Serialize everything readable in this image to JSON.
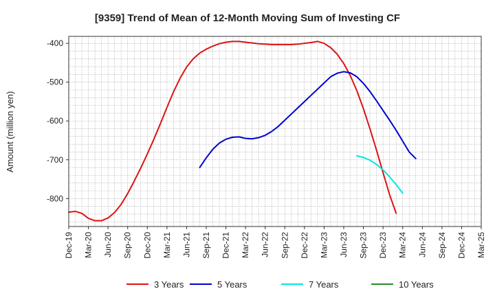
{
  "chart_data": {
    "type": "line",
    "title": "[9359]  Trend of Mean of 12-Month Moving Sum of Investing CF",
    "xlabel": "",
    "ylabel": "Amount (million yen)",
    "ylim": [
      -872,
      -382
    ],
    "yticks": [
      -400,
      -500,
      -600,
      -700,
      -800
    ],
    "ytick_labels": [
      "-400",
      "-500",
      "-600",
      "-700",
      "-800"
    ],
    "x_start": "2019-12",
    "x_end": "2025-03",
    "xticks": [
      "Dec-19",
      "Mar-20",
      "Jun-20",
      "Sep-20",
      "Dec-20",
      "Mar-21",
      "Jun-21",
      "Sep-21",
      "Dec-21",
      "Mar-22",
      "Jun-22",
      "Sep-22",
      "Dec-22",
      "Mar-23",
      "Jun-23",
      "Sep-23",
      "Dec-23",
      "Mar-24",
      "Jun-24",
      "Sep-24",
      "Dec-24",
      "Mar-25"
    ],
    "grid": true,
    "legend_position": "bottom",
    "series": [
      {
        "name": "3 Years",
        "color": "#dd1111",
        "start": "2019-12",
        "values": [
          -835,
          -833,
          -838,
          -851,
          -857,
          -857,
          -850,
          -836,
          -815,
          -787,
          -755,
          -721,
          -685,
          -647,
          -607,
          -565,
          -525,
          -490,
          -461,
          -440,
          -425,
          -415,
          -407,
          -401,
          -397,
          -395,
          -395,
          -397,
          -399,
          -401,
          -402,
          -403,
          -403,
          -403,
          -403,
          -402,
          -400,
          -398,
          -395,
          -400,
          -411,
          -428,
          -452,
          -483,
          -522,
          -568,
          -620,
          -675,
          -733,
          -790,
          -838
        ]
      },
      {
        "name": "5 Years",
        "color": "#0000cc",
        "start": "2021-08",
        "values": [
          -720,
          -695,
          -673,
          -657,
          -647,
          -642,
          -641,
          -645,
          -646,
          -643,
          -637,
          -627,
          -614,
          -598,
          -582,
          -566,
          -550,
          -534,
          -518,
          -502,
          -486,
          -477,
          -473,
          -476,
          -486,
          -503,
          -524,
          -548,
          -573,
          -598,
          -624,
          -652,
          -680,
          -697
        ]
      },
      {
        "name": "7 Years",
        "color": "#00e5e5",
        "start": "2023-08",
        "values": [
          -690,
          -694,
          -701,
          -712,
          -726,
          -744,
          -764,
          -786
        ]
      },
      {
        "name": "10 Years",
        "color": "#228b22",
        "start": "2024-03",
        "values": []
      }
    ]
  }
}
